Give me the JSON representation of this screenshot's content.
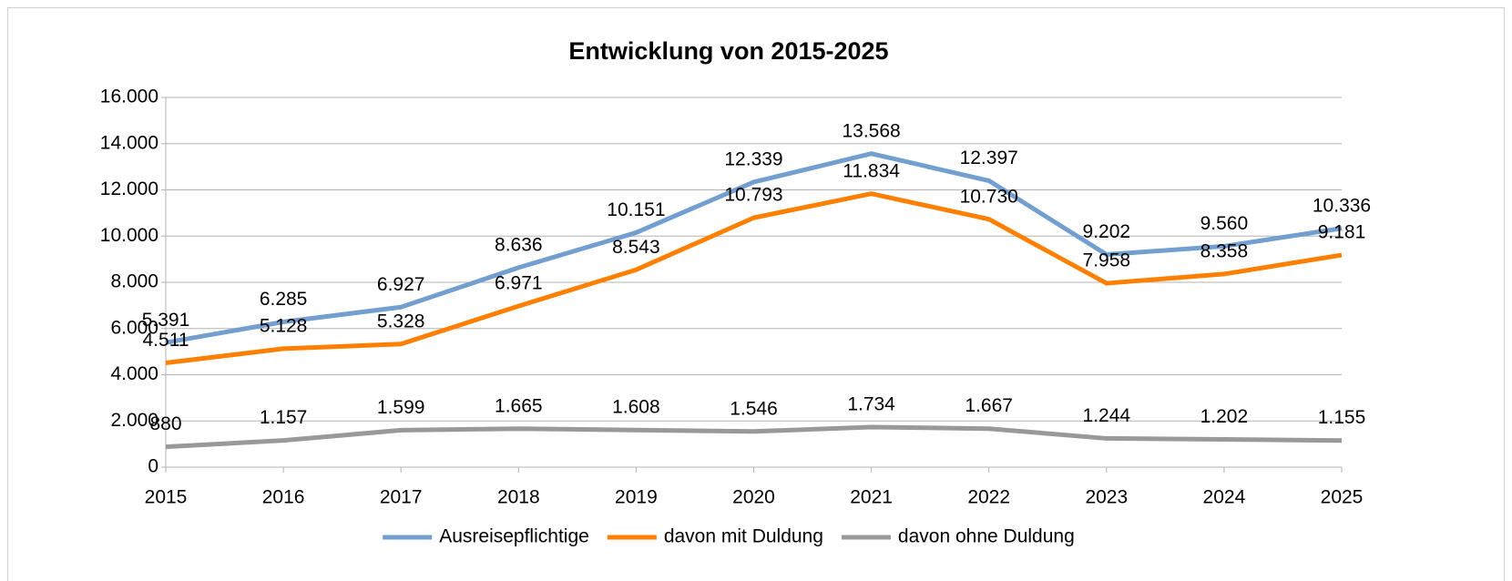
{
  "chart_data": {
    "type": "line",
    "title": "Entwicklung von 2015-2025",
    "categories": [
      "2015",
      "2016",
      "2017",
      "2018",
      "2019",
      "2020",
      "2021",
      "2022",
      "2023",
      "2024",
      "2025"
    ],
    "series": [
      {
        "name": "Ausreisepflichtige",
        "color": "#729fcf",
        "values": [
          5391,
          6285,
          6927,
          8636,
          10151,
          12339,
          13568,
          12397,
          9202,
          9560,
          10336
        ],
        "value_labels": [
          "5.391",
          "6.285",
          "6.927",
          "8.636",
          "10.151",
          "12.339",
          "13.568",
          "12.397",
          "9.202",
          "9.560",
          "10.336"
        ]
      },
      {
        "name": "davon mit Duldung",
        "color": "#ff8000",
        "values": [
          4511,
          5128,
          5328,
          6971,
          8543,
          10793,
          11834,
          10730,
          7958,
          8358,
          9181
        ],
        "value_labels": [
          "4.511",
          "5.128",
          "5.328",
          "6.971",
          "8.543",
          "10.793",
          "11.834",
          "10.730",
          "7.958",
          "8.358",
          "9.181"
        ]
      },
      {
        "name": "davon ohne Duldung",
        "color": "#999999",
        "values": [
          880,
          1157,
          1599,
          1665,
          1608,
          1546,
          1734,
          1667,
          1244,
          1202,
          1155
        ],
        "value_labels": [
          "880",
          "1.157",
          "1.599",
          "1.665",
          "1.608",
          "1.546",
          "1.734",
          "1.667",
          "1.244",
          "1.202",
          "1.155"
        ]
      }
    ],
    "ylim": [
      0,
      16000
    ],
    "yticks": [
      0,
      {
        "value": 2000,
        "label": "2.000"
      },
      {
        "value": 4000,
        "label": "4.000"
      },
      {
        "value": 6000,
        "label": "6.000"
      },
      {
        "value": 8000,
        "label": "8.000"
      },
      {
        "value": 10000,
        "label": "10.000"
      },
      {
        "value": 12000,
        "label": "12.000"
      },
      {
        "value": 14000,
        "label": "14.000"
      },
      {
        "value": 16000,
        "label": "16.000"
      }
    ],
    "grid": true,
    "legend": "bottom"
  }
}
